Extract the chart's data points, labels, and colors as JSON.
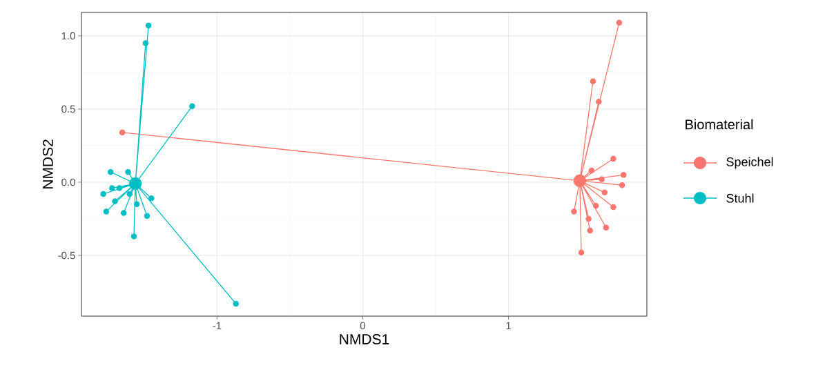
{
  "chart_data": {
    "type": "line",
    "xlabel": "NMDS1",
    "ylabel": "NMDS2",
    "legend_title": "Biomaterial",
    "legend": "right",
    "grid": true,
    "marker": "circle",
    "line_style": "solid",
    "xlim": [
      -1.93,
      1.95
    ],
    "ylim": [
      -0.915,
      1.16
    ],
    "xticks": [
      -1,
      0,
      1
    ],
    "yticks": [
      -0.5,
      {
        "value": 0,
        "label": "0.0"
      },
      0.5,
      {
        "value": 1,
        "label": "1.0"
      }
    ],
    "series": [
      {
        "name": "Speichel",
        "color": "#f8766d",
        "x": [
          1.49,
          1.76,
          1.49,
          1.58,
          1.49,
          1.62,
          1.49,
          -1.65,
          1.49,
          1.72,
          1.49,
          1.57,
          1.49,
          1.79,
          1.49,
          1.78,
          1.49,
          1.64,
          1.49,
          1.66,
          1.49,
          1.72,
          1.49,
          1.6,
          1.49,
          1.45,
          1.49,
          1.55,
          1.49,
          1.56,
          1.49,
          1.67,
          1.49,
          1.5
        ],
        "values": [
          0.01,
          1.09,
          0.01,
          0.69,
          0.01,
          0.55,
          0.01,
          0.34,
          0.01,
          0.16,
          0.01,
          0.08,
          0.01,
          0.05,
          0.01,
          -0.02,
          0.01,
          0.02,
          0.01,
          -0.07,
          0.01,
          -0.17,
          0.01,
          -0.16,
          0.01,
          -0.2,
          0.01,
          -0.25,
          0.01,
          -0.33,
          0.01,
          -0.31,
          0.01,
          -0.48
        ]
      },
      {
        "name": "Stuhl",
        "color": "#00bfc4",
        "x": [
          -1.56,
          -1.47,
          -1.56,
          -1.49,
          -1.56,
          -1.17,
          -1.56,
          -0.87,
          -1.56,
          -1.73,
          -1.56,
          -1.61,
          -1.56,
          -1.78,
          -1.56,
          -1.72,
          -1.56,
          -1.67,
          -1.56,
          -1.45,
          -1.56,
          -1.76,
          -1.56,
          -1.64,
          -1.56,
          -1.48,
          -1.56,
          -1.57,
          -1.56,
          -1.7,
          -1.56,
          -1.55,
          -1.56,
          -1.6
        ],
        "values": [
          -0.01,
          1.07,
          -0.01,
          0.95,
          -0.01,
          0.52,
          -0.01,
          -0.83,
          -0.01,
          0.07,
          -0.01,
          0.07,
          -0.01,
          -0.08,
          -0.01,
          -0.04,
          -0.01,
          -0.04,
          -0.01,
          -0.11,
          -0.01,
          -0.2,
          -0.01,
          -0.21,
          -0.01,
          -0.23,
          -0.01,
          -0.37,
          -0.01,
          -0.13,
          -0.01,
          -0.15,
          -0.01,
          -0.08
        ]
      },
      {
        "type": "bubble",
        "colors": [
          "#f8766d",
          "#00bfc4"
        ],
        "x": [
          1.49,
          -1.56
        ],
        "values": [
          0.01,
          -0.01
        ],
        "sizes": [
          1,
          1
        ]
      }
    ]
  }
}
